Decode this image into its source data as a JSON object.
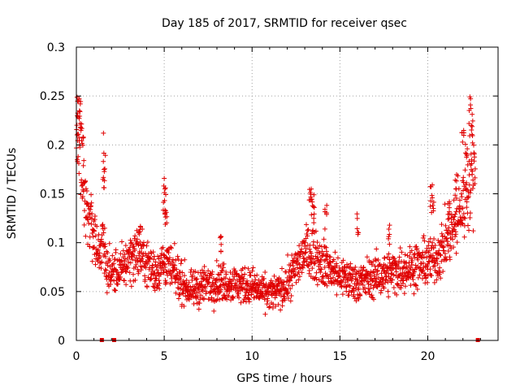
{
  "chart_data": {
    "type": "scatter",
    "title": "Day 185 of 2017, SRMTID for receiver qsec",
    "xlabel": "GPS time / hours",
    "ylabel": "SRMTID / TECUs",
    "xlim": [
      0,
      24
    ],
    "ylim": [
      0,
      0.3
    ],
    "x_ticks": [
      0,
      5,
      10,
      15,
      20
    ],
    "x_tick_labels": [
      "0",
      "5",
      "10",
      "15",
      "20"
    ],
    "y_ticks": [
      0,
      0.05,
      0.1,
      0.15,
      0.2,
      0.25,
      0.3
    ],
    "y_tick_labels": [
      "0",
      "0.05",
      "0.1",
      "0.15",
      "0.2",
      "0.25",
      "0.3"
    ],
    "grid": true,
    "marker": "+",
    "color": "#e00000",
    "gap_markers_x": [
      1.45,
      2.15,
      22.85
    ],
    "series": [
      {
        "name": "SRMTID",
        "profile": [
          [
            0.0,
            0.2
          ],
          [
            0.2,
            0.2
          ],
          [
            0.5,
            0.14
          ],
          [
            0.8,
            0.12
          ],
          [
            1.0,
            0.11
          ],
          [
            1.2,
            0.09
          ],
          [
            1.5,
            0.1
          ],
          [
            1.8,
            0.07
          ],
          [
            2.5,
            0.07
          ],
          [
            3.0,
            0.085
          ],
          [
            3.5,
            0.09
          ],
          [
            4.0,
            0.08
          ],
          [
            4.5,
            0.07
          ],
          [
            5.0,
            0.08
          ],
          [
            5.5,
            0.07
          ],
          [
            6.0,
            0.06
          ],
          [
            6.5,
            0.05
          ],
          [
            7.0,
            0.055
          ],
          [
            8.0,
            0.06
          ],
          [
            9.0,
            0.058
          ],
          [
            10.0,
            0.055
          ],
          [
            10.5,
            0.05
          ],
          [
            11.0,
            0.048
          ],
          [
            11.5,
            0.05
          ],
          [
            12.0,
            0.058
          ],
          [
            12.5,
            0.075
          ],
          [
            13.0,
            0.09
          ],
          [
            13.5,
            0.09
          ],
          [
            14.0,
            0.08
          ],
          [
            15.0,
            0.065
          ],
          [
            16.0,
            0.06
          ],
          [
            17.0,
            0.065
          ],
          [
            18.0,
            0.07
          ],
          [
            19.0,
            0.075
          ],
          [
            20.0,
            0.08
          ],
          [
            20.5,
            0.085
          ],
          [
            21.0,
            0.1
          ],
          [
            21.5,
            0.115
          ],
          [
            22.0,
            0.14
          ],
          [
            22.5,
            0.17
          ],
          [
            22.7,
            0.18
          ]
        ],
        "spikes": [
          [
            0.1,
            0.25
          ],
          [
            0.2,
            0.24
          ],
          [
            0.35,
            0.23
          ],
          [
            1.55,
            0.2
          ],
          [
            1.6,
            0.21
          ],
          [
            3.6,
            0.12
          ],
          [
            5.0,
            0.17
          ],
          [
            5.05,
            0.16
          ],
          [
            5.1,
            0.14
          ],
          [
            8.2,
            0.11
          ],
          [
            13.3,
            0.17
          ],
          [
            13.4,
            0.16
          ],
          [
            13.5,
            0.15
          ],
          [
            14.2,
            0.14
          ],
          [
            16.0,
            0.14
          ],
          [
            17.8,
            0.12
          ],
          [
            20.2,
            0.17
          ],
          [
            20.3,
            0.16
          ],
          [
            21.2,
            0.15
          ],
          [
            21.6,
            0.17
          ],
          [
            22.0,
            0.22
          ],
          [
            22.2,
            0.21
          ],
          [
            22.4,
            0.25
          ],
          [
            22.5,
            0.23
          ]
        ]
      }
    ]
  }
}
